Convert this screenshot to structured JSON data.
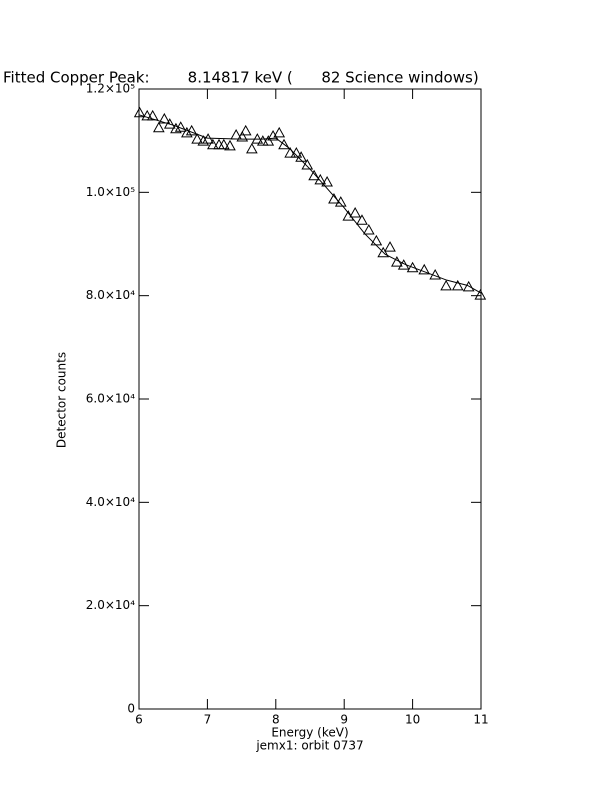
{
  "chart_data": {
    "type": "scatter",
    "title": "Fitted Copper Peak:        8.14817 keV (      82 Science windows)",
    "x_label": "Energy (keV)",
    "y_label": "Detector counts",
    "subtitle": "jemx1: orbit 0737",
    "xlim": [
      6,
      11
    ],
    "xticks": [
      6,
      7,
      8,
      9,
      10,
      11
    ],
    "ylim": [
      0,
      120000
    ],
    "yticks": [
      0,
      {
        "value": 20000,
        "label": "2.0×10⁴"
      },
      {
        "value": 40000,
        "label": "4.0×10⁴"
      },
      {
        "value": 60000,
        "label": "6.0×10⁴"
      },
      {
        "value": 80000,
        "label": "8.0×10⁴"
      },
      {
        "value": 100000,
        "label": "1.0×10⁵"
      },
      {
        "value": 120000,
        "label": "1.2×10⁵"
      }
    ],
    "series": [
      {
        "color": "#000000",
        "marker": "triangle",
        "x": [
          6.01,
          6.12,
          6.2,
          6.29,
          6.37,
          6.45,
          6.54,
          6.61,
          6.7,
          6.77,
          6.85,
          6.94,
          7.01,
          7.08,
          7.17,
          7.24,
          7.33,
          7.42,
          7.51,
          7.56,
          7.65,
          7.73,
          7.81,
          7.89,
          7.96,
          8.05,
          8.12,
          8.21,
          8.3,
          8.37,
          8.46,
          8.56,
          8.65,
          8.75,
          8.85,
          8.95,
          9.06,
          9.16,
          9.26,
          9.36,
          9.47,
          9.57,
          9.67,
          9.77,
          9.87,
          10.0,
          10.17,
          10.33,
          10.49,
          10.66,
          10.82,
          10.99
        ],
        "values": [
          115400,
          114800,
          114800,
          112500,
          114200,
          113200,
          112300,
          112600,
          111500,
          111900,
          110300,
          109900,
          110300,
          109200,
          109200,
          109200,
          109000,
          111100,
          110700,
          111900,
          108400,
          110300,
          109900,
          109900,
          110900,
          111500,
          109200,
          107600,
          107600,
          106800,
          105300,
          103200,
          102400,
          102000,
          98700,
          98100,
          95400,
          96000,
          94600,
          92700,
          90600,
          88300,
          89400,
          86500,
          85900,
          85400,
          85000,
          84000,
          81900,
          81900,
          81700,
          80100
        ]
      },
      {
        "color": "#000000",
        "marker": "line",
        "x": [
          6,
          6.5,
          7,
          7.5,
          7.8,
          8,
          8.2,
          8.5,
          8.8,
          9,
          9.3,
          9.6,
          9.9,
          10.2,
          10.5,
          10.8,
          11
        ],
        "values": [
          115000,
          113000,
          110500,
          110300,
          110300,
          110500,
          108500,
          104500,
          100000,
          97000,
          92000,
          88000,
          86000,
          84500,
          83000,
          82000,
          80500
        ]
      }
    ]
  }
}
